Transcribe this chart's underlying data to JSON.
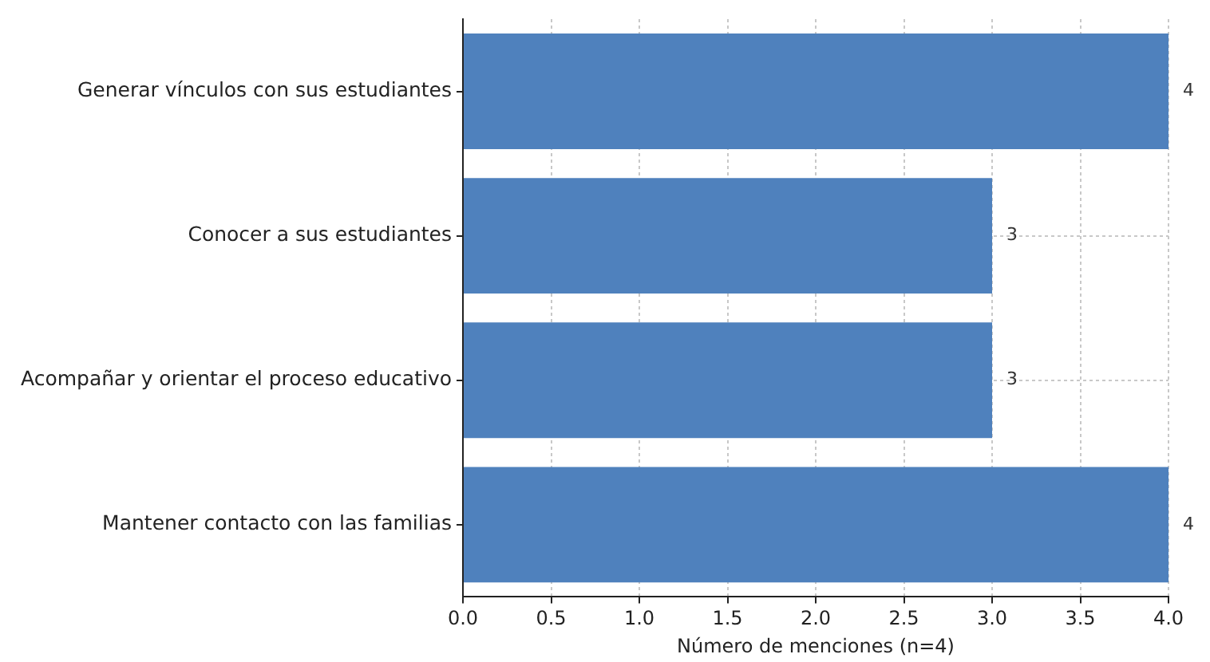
{
  "chart_data": {
    "type": "bar",
    "orientation": "horizontal",
    "categories": [
      "Generar vínculos con sus estudiantes",
      "Conocer a sus estudiantes",
      "Acompañar y orientar el proceso educativo",
      "Mantener contacto con las familias"
    ],
    "values": [
      4,
      3,
      3,
      4
    ],
    "color": "#4f81bd",
    "xlabel": "Número de menciones (n=4)",
    "xlim": [
      0,
      4
    ],
    "xticks": [
      {
        "value": 0,
        "label": "0.0"
      },
      {
        "value": 0.5,
        "label": "0.5"
      },
      {
        "value": 1,
        "label": "1.0"
      },
      {
        "value": 1.5,
        "label": "1.5"
      },
      {
        "value": 2,
        "label": "2.0"
      },
      {
        "value": 2.5,
        "label": "2.5"
      },
      {
        "value": 3,
        "label": "3.0"
      },
      {
        "value": 3.5,
        "label": "3.5"
      },
      {
        "value": 4,
        "label": "4.0"
      }
    ],
    "grid": true,
    "data_labels": true
  }
}
